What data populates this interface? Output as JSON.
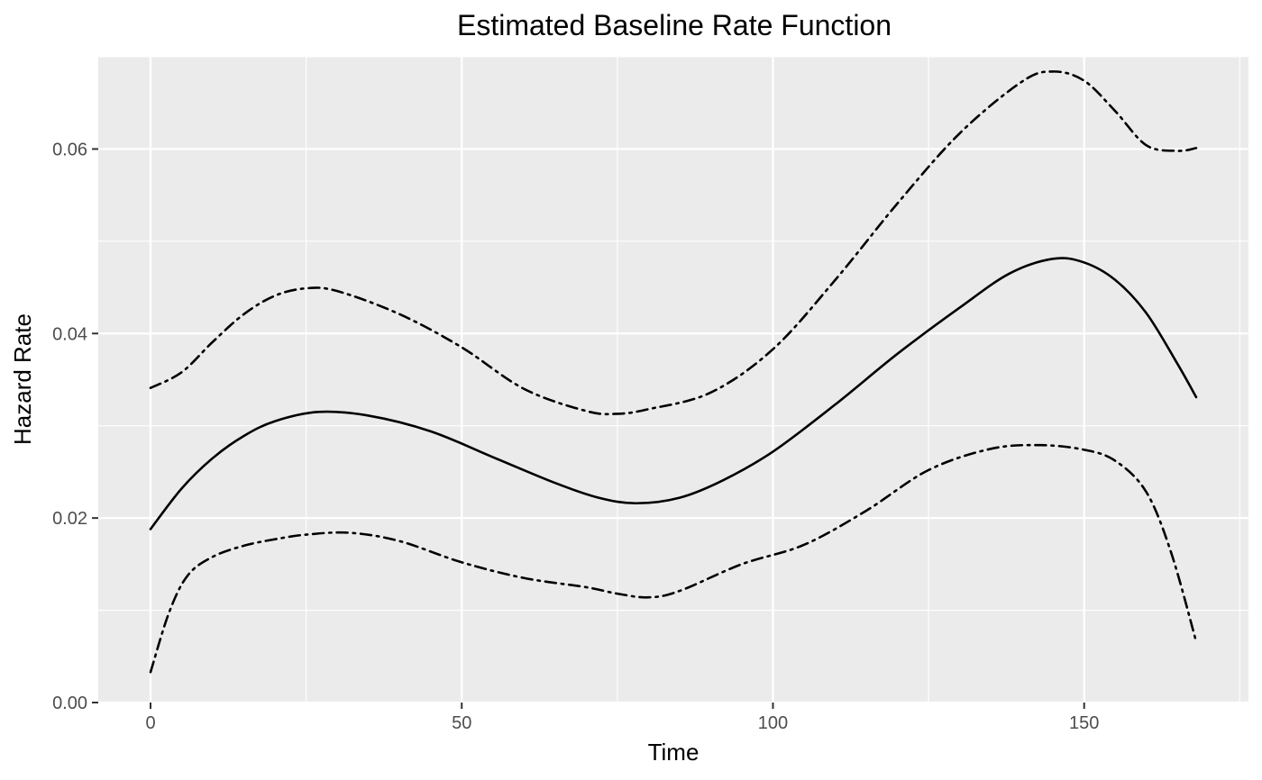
{
  "chart_data": {
    "type": "line",
    "title": "Estimated Baseline Rate Function",
    "xlabel": "Time",
    "ylabel": "Hazard Rate",
    "xlim": [
      -8.4,
      176.4
    ],
    "ylim": [
      0,
      0.07
    ],
    "x_ticks": [
      0,
      50,
      100,
      150
    ],
    "x_tick_labels": [
      "0",
      "50",
      "100",
      "150"
    ],
    "y_ticks": [
      0,
      0.02,
      0.04,
      0.06
    ],
    "y_tick_labels": [
      "0.00",
      "0.02",
      "0.04",
      "0.06"
    ],
    "grid": true,
    "legend": "none",
    "colors": {
      "panel": "#ebebeb",
      "grid": "#ffffff",
      "line": "#000000",
      "tick_text": "#4d4d4d"
    },
    "series": [
      {
        "style": "solid",
        "x": [
          0,
          5,
          10,
          15,
          20,
          27,
          35,
          45,
          55,
          65,
          72,
          78,
          85,
          92,
          100,
          110,
          120,
          130,
          138,
          145,
          150,
          155,
          160,
          165,
          168
        ],
        "values": [
          0.0188,
          0.0232,
          0.0265,
          0.0289,
          0.0305,
          0.0315,
          0.0311,
          0.0294,
          0.0266,
          0.0238,
          0.0222,
          0.0216,
          0.0222,
          0.0241,
          0.0272,
          0.0323,
          0.0378,
          0.0428,
          0.0465,
          0.0481,
          0.0477,
          0.0458,
          0.0422,
          0.0367,
          0.0331
        ]
      },
      {
        "style": "dashdot",
        "x": [
          0,
          5,
          10,
          15,
          20,
          25,
          30,
          40,
          50,
          60,
          70,
          75,
          80,
          90,
          100,
          110,
          120,
          130,
          140,
          145,
          150,
          155,
          160,
          165,
          168
        ],
        "values": [
          0.0341,
          0.0358,
          0.0391,
          0.0421,
          0.0441,
          0.0449,
          0.0446,
          0.0421,
          0.0385,
          0.034,
          0.0316,
          0.0313,
          0.0318,
          0.0336,
          0.0383,
          0.0458,
          0.0541,
          0.0617,
          0.0673,
          0.0684,
          0.0674,
          0.0641,
          0.0604,
          0.0598,
          0.0601
        ]
      },
      {
        "style": "dashdot",
        "x": [
          0,
          3,
          6,
          10,
          15,
          20,
          25,
          32,
          40,
          50,
          60,
          70,
          75,
          80,
          85,
          95,
          105,
          115,
          125,
          135,
          143,
          150,
          155,
          160,
          164,
          168
        ],
        "values": [
          0.0033,
          0.0098,
          0.0138,
          0.0158,
          0.017,
          0.0177,
          0.0182,
          0.0184,
          0.0175,
          0.0152,
          0.0135,
          0.0125,
          0.0118,
          0.0114,
          0.0121,
          0.015,
          0.0171,
          0.0208,
          0.0252,
          0.0275,
          0.0279,
          0.0274,
          0.0262,
          0.0228,
          0.0162,
          0.0066
        ]
      }
    ]
  }
}
